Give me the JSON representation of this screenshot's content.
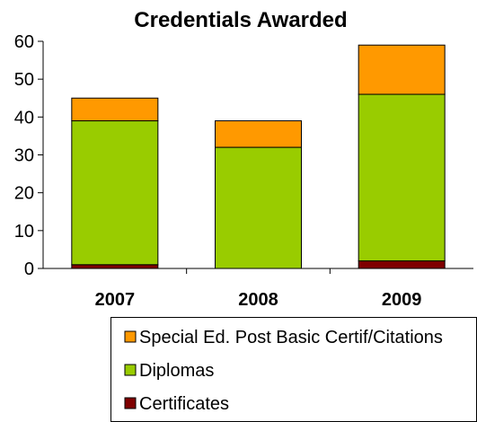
{
  "chart_data": {
    "type": "bar",
    "stacked": true,
    "title": "Credentials Awarded",
    "xlabel": "",
    "ylabel": "",
    "categories": [
      "2007",
      "2008",
      "2009"
    ],
    "ylim": [
      0,
      60
    ],
    "yticks": [
      0,
      10,
      20,
      30,
      40,
      50,
      60
    ],
    "grid": false,
    "legend_position": "bottom",
    "series": [
      {
        "name": "Certificates",
        "values": [
          1,
          0,
          2
        ],
        "color": "#7F0000"
      },
      {
        "name": "Diplomas",
        "values": [
          38,
          32,
          44
        ],
        "color": "#99CC00"
      },
      {
        "name": "Special Ed. Post Basic Certif/Citations",
        "values": [
          6,
          7,
          13
        ],
        "color": "#FF9900"
      }
    ],
    "legend_order": [
      "Special Ed. Post Basic Certif/Citations",
      "Diplomas",
      "Certificates"
    ]
  }
}
